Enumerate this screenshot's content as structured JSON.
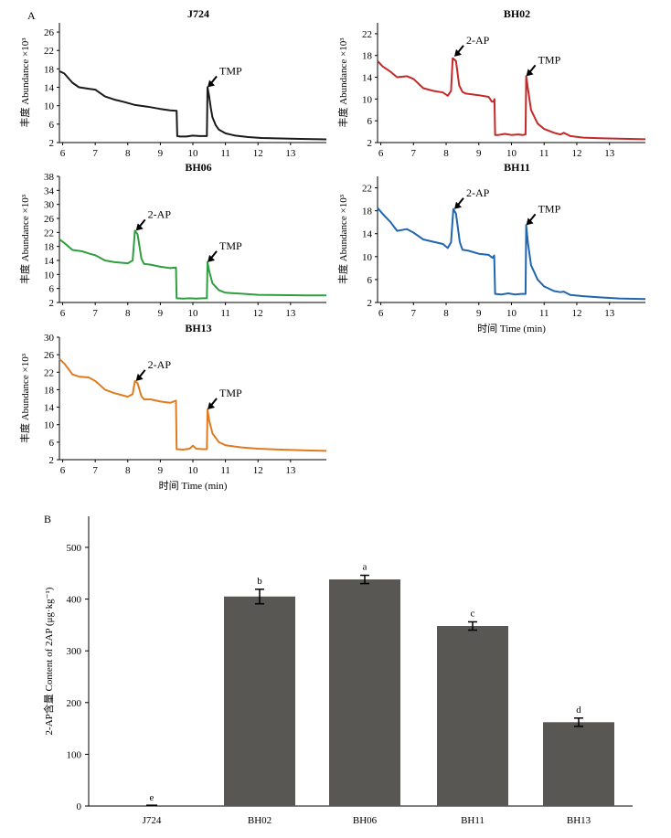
{
  "panel_labels": {
    "a": "A",
    "b": "B"
  },
  "colors": {
    "J724": "#1a1a1a",
    "BH02": "#c62828",
    "BH06": "#2e9e3e",
    "BH11": "#1f66b0",
    "BH13": "#e07b1f",
    "bar": "#595754"
  },
  "chart_data": [
    {
      "type": "line",
      "title": "J724",
      "ylabel": "丰度 Abundance ×10³",
      "xlabel": "",
      "xlim": [
        5.9,
        14.1
      ],
      "ylim": [
        2,
        28
      ],
      "xticks": [
        6,
        7,
        8,
        9,
        10,
        11,
        12,
        13
      ],
      "yticks": [
        2,
        6,
        10,
        14,
        18,
        22,
        26
      ],
      "annotations": [
        {
          "text": "TMP",
          "x": 10.45,
          "y": 14.0
        }
      ],
      "series": [
        {
          "color_key": "J724",
          "x": [
            5.9,
            6.05,
            6.3,
            6.5,
            6.8,
            7.0,
            7.3,
            7.6,
            7.9,
            8.2,
            8.6,
            9.0,
            9.3,
            9.5,
            9.52,
            9.6,
            9.8,
            10.0,
            10.2,
            10.35,
            10.43,
            10.45,
            10.5,
            10.55,
            10.6,
            10.7,
            10.8,
            11.0,
            11.3,
            11.7,
            12.1,
            12.7,
            13.3,
            14.1
          ],
          "y": [
            17.5,
            17.0,
            15.0,
            14.0,
            13.7,
            13.5,
            12.0,
            11.3,
            10.8,
            10.2,
            9.8,
            9.3,
            9.0,
            8.9,
            3.4,
            3.3,
            3.3,
            3.5,
            3.4,
            3.4,
            3.4,
            14.0,
            12.0,
            9.5,
            7.5,
            5.8,
            4.8,
            4.0,
            3.5,
            3.2,
            3.0,
            2.9,
            2.8,
            2.7
          ]
        }
      ]
    },
    {
      "type": "line",
      "title": "BH02",
      "ylabel": "丰度 Abundance ×10³",
      "xlabel": "",
      "xlim": [
        5.9,
        14.1
      ],
      "ylim": [
        2,
        24
      ],
      "xticks": [
        6,
        7,
        8,
        9,
        10,
        11,
        12,
        13
      ],
      "yticks": [
        2,
        6,
        10,
        14,
        18,
        22
      ],
      "annotations": [
        {
          "text": "2-AP",
          "x": 8.25,
          "y": 17.8
        },
        {
          "text": "TMP",
          "x": 10.45,
          "y": 14.2
        }
      ],
      "series": [
        {
          "color_key": "BH02",
          "x": [
            5.9,
            6.05,
            6.3,
            6.5,
            6.8,
            7.0,
            7.3,
            7.6,
            7.9,
            8.05,
            8.15,
            8.2,
            8.3,
            8.4,
            8.5,
            8.6,
            9.0,
            9.3,
            9.4,
            9.45,
            9.48,
            9.5,
            9.6,
            9.8,
            10.0,
            10.2,
            10.35,
            10.43,
            10.45,
            10.5,
            10.6,
            10.8,
            11.0,
            11.3,
            11.5,
            11.6,
            11.8,
            12.2,
            12.7,
            13.3,
            14.1
          ],
          "y": [
            17.0,
            16.0,
            15.0,
            14.0,
            14.2,
            13.7,
            12.0,
            11.5,
            11.2,
            10.6,
            11.5,
            17.5,
            17.0,
            12.5,
            11.3,
            11.0,
            10.7,
            10.4,
            9.5,
            9.5,
            10.0,
            3.4,
            3.4,
            3.6,
            3.4,
            3.5,
            3.4,
            3.5,
            14.2,
            12.0,
            8.0,
            5.5,
            4.5,
            3.8,
            3.5,
            3.8,
            3.2,
            2.9,
            2.8,
            2.7,
            2.6
          ]
        }
      ]
    },
    {
      "type": "line",
      "title": "BH06",
      "ylabel": "丰度 Abundance ×10³",
      "xlabel": "",
      "xlim": [
        5.9,
        14.1
      ],
      "ylim": [
        2,
        38
      ],
      "xticks": [
        6,
        7,
        8,
        9,
        10,
        11,
        12,
        13
      ],
      "yticks": [
        2,
        6,
        10,
        14,
        18,
        22,
        26,
        30,
        34,
        38
      ],
      "annotations": [
        {
          "text": "2-AP",
          "x": 8.25,
          "y": 22.5
        },
        {
          "text": "TMP",
          "x": 10.45,
          "y": 13.5
        }
      ],
      "series": [
        {
          "color_key": "BH06",
          "x": [
            5.9,
            6.05,
            6.3,
            6.6,
            6.8,
            7.0,
            7.3,
            7.6,
            8.0,
            8.15,
            8.22,
            8.3,
            8.42,
            8.5,
            8.7,
            9.0,
            9.3,
            9.48,
            9.5,
            9.7,
            9.9,
            10.1,
            10.3,
            10.43,
            10.45,
            10.5,
            10.6,
            10.8,
            11.0,
            11.5,
            12.0,
            12.7,
            13.5,
            14.1
          ],
          "y": [
            20.0,
            19.0,
            17.0,
            16.6,
            16.0,
            15.5,
            14.0,
            13.5,
            13.2,
            14.0,
            22.5,
            21.5,
            14.5,
            13.0,
            12.8,
            12.2,
            11.8,
            12.0,
            3.2,
            3.1,
            3.2,
            3.1,
            3.2,
            3.2,
            13.5,
            11.0,
            7.5,
            5.5,
            4.8,
            4.5,
            4.2,
            4.1,
            4.0,
            4.0
          ]
        }
      ]
    },
    {
      "type": "line",
      "title": "BH11",
      "ylabel": "丰度 Abundance ×10³",
      "xlabel": "时间 Time (min)",
      "xlim": [
        5.9,
        14.1
      ],
      "ylim": [
        2,
        24
      ],
      "xticks": [
        6,
        7,
        8,
        9,
        10,
        11,
        12,
        13
      ],
      "yticks": [
        2,
        6,
        10,
        14,
        18,
        22
      ],
      "annotations": [
        {
          "text": "2-AP",
          "x": 8.25,
          "y": 18.3
        },
        {
          "text": "TMP",
          "x": 10.45,
          "y": 15.5
        }
      ],
      "series": [
        {
          "color_key": "BH11",
          "x": [
            5.9,
            6.05,
            6.3,
            6.5,
            6.8,
            7.0,
            7.3,
            7.6,
            7.9,
            8.05,
            8.15,
            8.22,
            8.3,
            8.42,
            8.5,
            8.7,
            9.0,
            9.3,
            9.42,
            9.45,
            9.47,
            9.5,
            9.7,
            9.9,
            10.1,
            10.3,
            10.43,
            10.45,
            10.5,
            10.6,
            10.8,
            11.0,
            11.3,
            11.5,
            11.6,
            11.8,
            12.2,
            12.7,
            13.3,
            14.1
          ],
          "y": [
            18.5,
            17.5,
            16.0,
            14.5,
            14.8,
            14.2,
            13.0,
            12.6,
            12.2,
            11.5,
            12.5,
            18.3,
            17.5,
            12.5,
            11.2,
            11.0,
            10.5,
            10.3,
            9.8,
            10.0,
            10.2,
            3.5,
            3.4,
            3.6,
            3.4,
            3.5,
            3.5,
            15.5,
            12.5,
            8.5,
            6.0,
            4.8,
            4.0,
            3.8,
            3.9,
            3.3,
            3.1,
            2.9,
            2.7,
            2.6
          ]
        }
      ]
    },
    {
      "type": "line",
      "title": "BH13",
      "ylabel": "丰度 Abundance ×10³",
      "xlabel": "时间 Time (min)",
      "xlim": [
        5.9,
        14.1
      ],
      "ylim": [
        2,
        30
      ],
      "xticks": [
        6,
        7,
        8,
        9,
        10,
        11,
        12,
        13
      ],
      "yticks": [
        2,
        6,
        10,
        14,
        18,
        22,
        26,
        30
      ],
      "annotations": [
        {
          "text": "2-AP",
          "x": 8.25,
          "y": 20.0
        },
        {
          "text": "TMP",
          "x": 10.45,
          "y": 13.5
        }
      ],
      "series": [
        {
          "color_key": "BH13",
          "x": [
            5.9,
            6.05,
            6.3,
            6.5,
            6.8,
            7.0,
            7.3,
            7.6,
            8.0,
            8.15,
            8.22,
            8.3,
            8.42,
            8.5,
            8.7,
            9.0,
            9.3,
            9.48,
            9.5,
            9.7,
            9.9,
            10.0,
            10.1,
            10.3,
            10.43,
            10.45,
            10.5,
            10.6,
            10.8,
            11.0,
            11.5,
            12.0,
            12.7,
            13.5,
            14.1
          ],
          "y": [
            25.0,
            24.0,
            21.5,
            21.0,
            20.8,
            20.0,
            18.0,
            17.2,
            16.4,
            17.0,
            20.0,
            19.5,
            16.5,
            15.8,
            15.8,
            15.3,
            15.0,
            15.5,
            4.4,
            4.3,
            4.5,
            5.2,
            4.5,
            4.4,
            4.4,
            13.5,
            11.0,
            8.0,
            6.0,
            5.3,
            4.8,
            4.5,
            4.3,
            4.1,
            4.0
          ]
        }
      ]
    },
    {
      "type": "bar",
      "title": "",
      "xlabel": "",
      "ylabel": "2-AP含量 Content of 2AP (μg·kg⁻¹)",
      "categories": [
        "J724",
        "BH02",
        "BH06",
        "BH11",
        "BH13"
      ],
      "values": [
        0,
        405,
        438,
        348,
        162
      ],
      "errors": [
        0,
        14,
        8,
        8,
        8
      ],
      "significance": [
        "e",
        "b",
        "a",
        "c",
        "d"
      ],
      "ylim": [
        0,
        560
      ],
      "yticks": [
        0,
        100,
        200,
        300,
        400,
        500
      ]
    }
  ]
}
